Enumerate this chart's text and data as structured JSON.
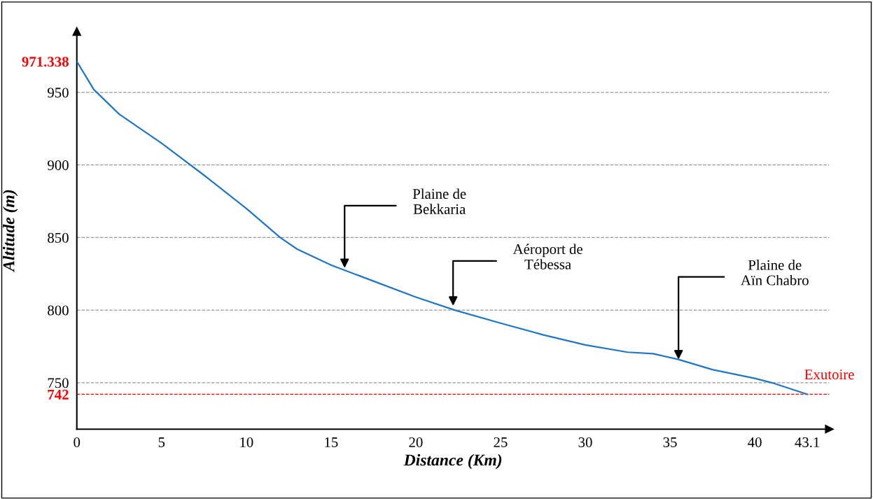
{
  "chart_data": {
    "type": "line",
    "xlabel": "Distance (Km)",
    "ylabel": "Altitude (m)",
    "x": [
      0,
      1,
      2.5,
      5,
      7.5,
      10,
      12,
      13,
      15,
      17.5,
      20,
      22.3,
      25,
      27.5,
      30,
      32.5,
      34,
      35.5,
      37.5,
      40,
      41,
      43.1
    ],
    "series": [
      {
        "color": "#1f77c4",
        "values": [
          971.338,
          952,
          935,
          915,
          893,
          870,
          850,
          842,
          831,
          820,
          809,
          800,
          791,
          783,
          776,
          771,
          770,
          766,
          759,
          753,
          750,
          742
        ]
      }
    ],
    "xlim": [
      0,
      44.4
    ],
    "ylim": [
      718,
      992
    ],
    "xticks": [
      0,
      5,
      10,
      15,
      20,
      25,
      30,
      35,
      40,
      43.1
    ],
    "yticks": [
      742,
      750,
      800,
      850,
      900,
      950,
      971.338
    ],
    "grid": "y",
    "legend": false,
    "marker": "none",
    "line_style": "solid",
    "ref_lines": [
      {
        "axis": "y",
        "value": 742,
        "label": "Exutoire",
        "color": "#ff0000",
        "line_style": "dashed"
      }
    ],
    "annotations": [
      {
        "text": "Plaine de\nBekkaria",
        "x": 15.8,
        "y": 829
      },
      {
        "text": "Aéroport de\nTébessa",
        "x": 22.2,
        "y": 803
      },
      {
        "text": "Plaine de\nAïn Chabro",
        "x": 35.5,
        "y": 766
      }
    ]
  }
}
